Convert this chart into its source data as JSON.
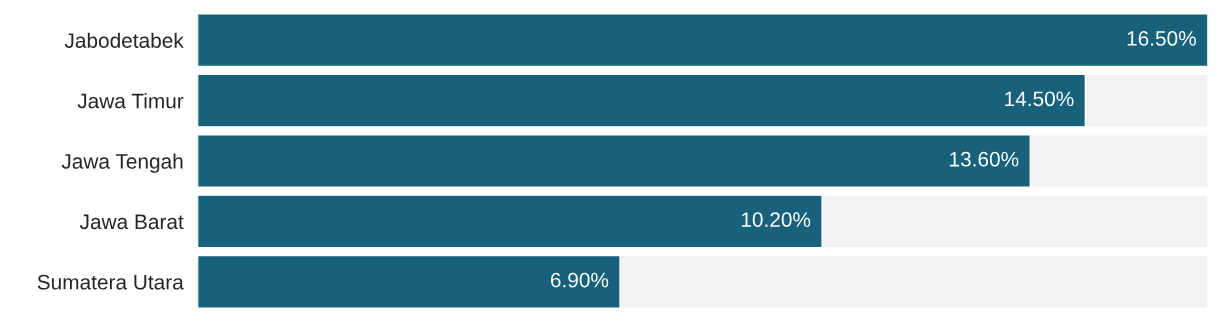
{
  "chart_data": {
    "type": "bar",
    "orientation": "horizontal",
    "categories": [
      "Jabodetabek",
      "Jawa Timur",
      "Jawa Tengah",
      "Jawa Barat",
      "Sumatera Utara"
    ],
    "values": [
      16.5,
      14.5,
      13.6,
      10.2,
      6.9
    ],
    "value_labels": [
      "16.50%",
      "14.50%",
      "13.60%",
      "10.20%",
      "6.90%"
    ],
    "color": "#17627a",
    "grid": false
  }
}
